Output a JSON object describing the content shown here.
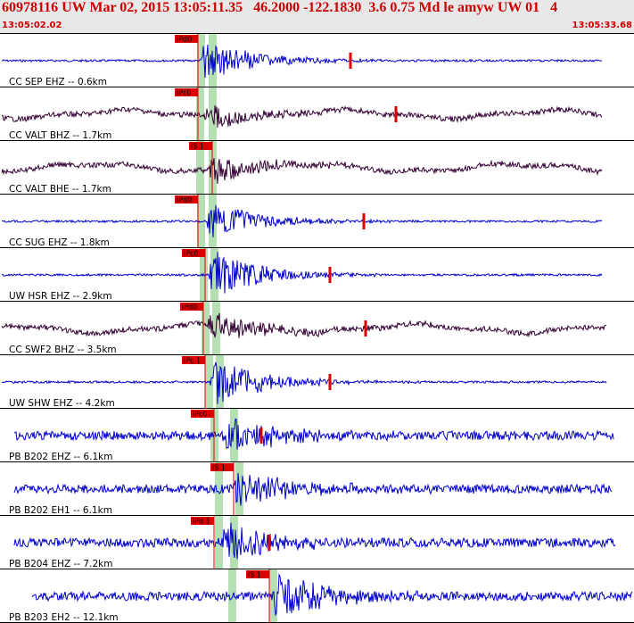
{
  "header": {
    "title": "60978116 UW Mar 02, 2015 13:05:11.35   46.2000 -122.1830  3.6 0.75 Md le amyw UW 01   4",
    "start_time": "13:05:02.02",
    "end_time": "13:05:33.68"
  },
  "colors": {
    "blue": "#0000cc",
    "dark": "#330033",
    "red": "#dd0000",
    "window": "#b4e0b4"
  },
  "traces": [
    {
      "label": "CC SEP EHZ -- 0.6km",
      "pick": "iPd0",
      "color": "#0000cc"
    },
    {
      "label": "CC VALT BHZ -- 1.7km",
      "pick": "iPc0",
      "color": "#330033"
    },
    {
      "label": "CC VALT BHE -- 1.7km",
      "pick": "iS 1",
      "color": "#330033"
    },
    {
      "label": "CC SUG EHZ -- 1.8km",
      "pick": "iPd0",
      "color": "#0000cc"
    },
    {
      "label": "UW HSR EHZ -- 2.9km",
      "pick": "iPc0",
      "color": "#0000cc"
    },
    {
      "label": "CC SWF2 BHZ -- 3.5km",
      "pick": "iPd0",
      "color": "#330033"
    },
    {
      "label": "UW SHW EHZ -- 4.2km",
      "pick": "iPc 1",
      "color": "#0000cc"
    },
    {
      "label": "PB B202 EHZ -- 6.1km",
      "pick": "iPc0",
      "color": "#0000cc"
    },
    {
      "label": "PB B202 EH1 -- 6.1km",
      "pick": "iS 1",
      "color": "#0000cc"
    },
    {
      "label": "PB B204 EHZ -- 7.2km",
      "pick": "iPd 1",
      "color": "#0000cc"
    },
    {
      "label": "PB B203 EH2 -- 12.1km",
      "pick": "iS 1",
      "color": "#0000cc"
    }
  ]
}
